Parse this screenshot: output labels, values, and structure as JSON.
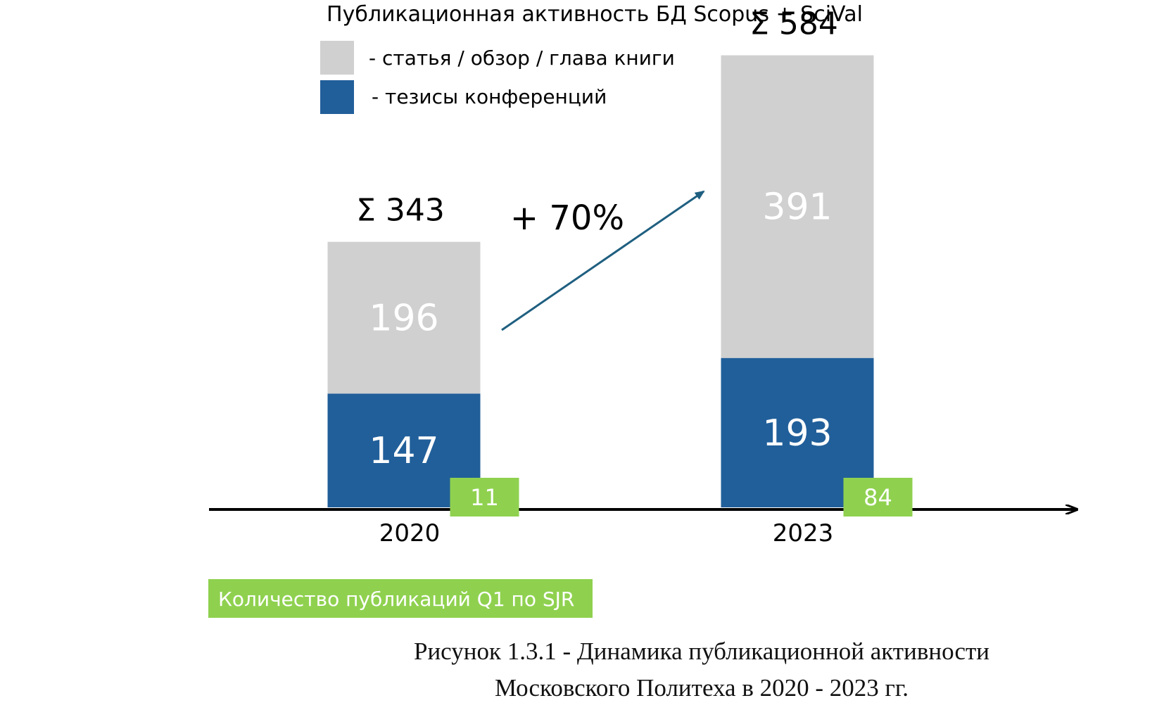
{
  "chart_data": {
    "type": "bar",
    "stacked": true,
    "title": "Публикационная активность БД Scopus + SciVal",
    "categories": [
      "2020",
      "2023"
    ],
    "series": [
      {
        "name": "- тезисы конференций",
        "values": [
          147,
          193
        ],
        "color": "#215f9a"
      },
      {
        "name": "- статья / обзор / глава книги",
        "values": [
          196,
          391
        ],
        "color": "#d0d0d0"
      }
    ],
    "totals": [
      "Σ 343",
      "Σ 584"
    ],
    "q1_values": [
      11,
      84
    ],
    "q1_color": "#8fd14f",
    "q1_label": "Количество публикаций Q1 по SJR",
    "growth_label": "+ 70%",
    "arrow_color": "#1f5f80",
    "legend_position": "top-left",
    "grid": false
  },
  "caption": {
    "line1": "Рисунок 1.3.1 - Динамика публикационной активности",
    "line2": "Московского Политеха в 2020 - 2023 гг."
  }
}
